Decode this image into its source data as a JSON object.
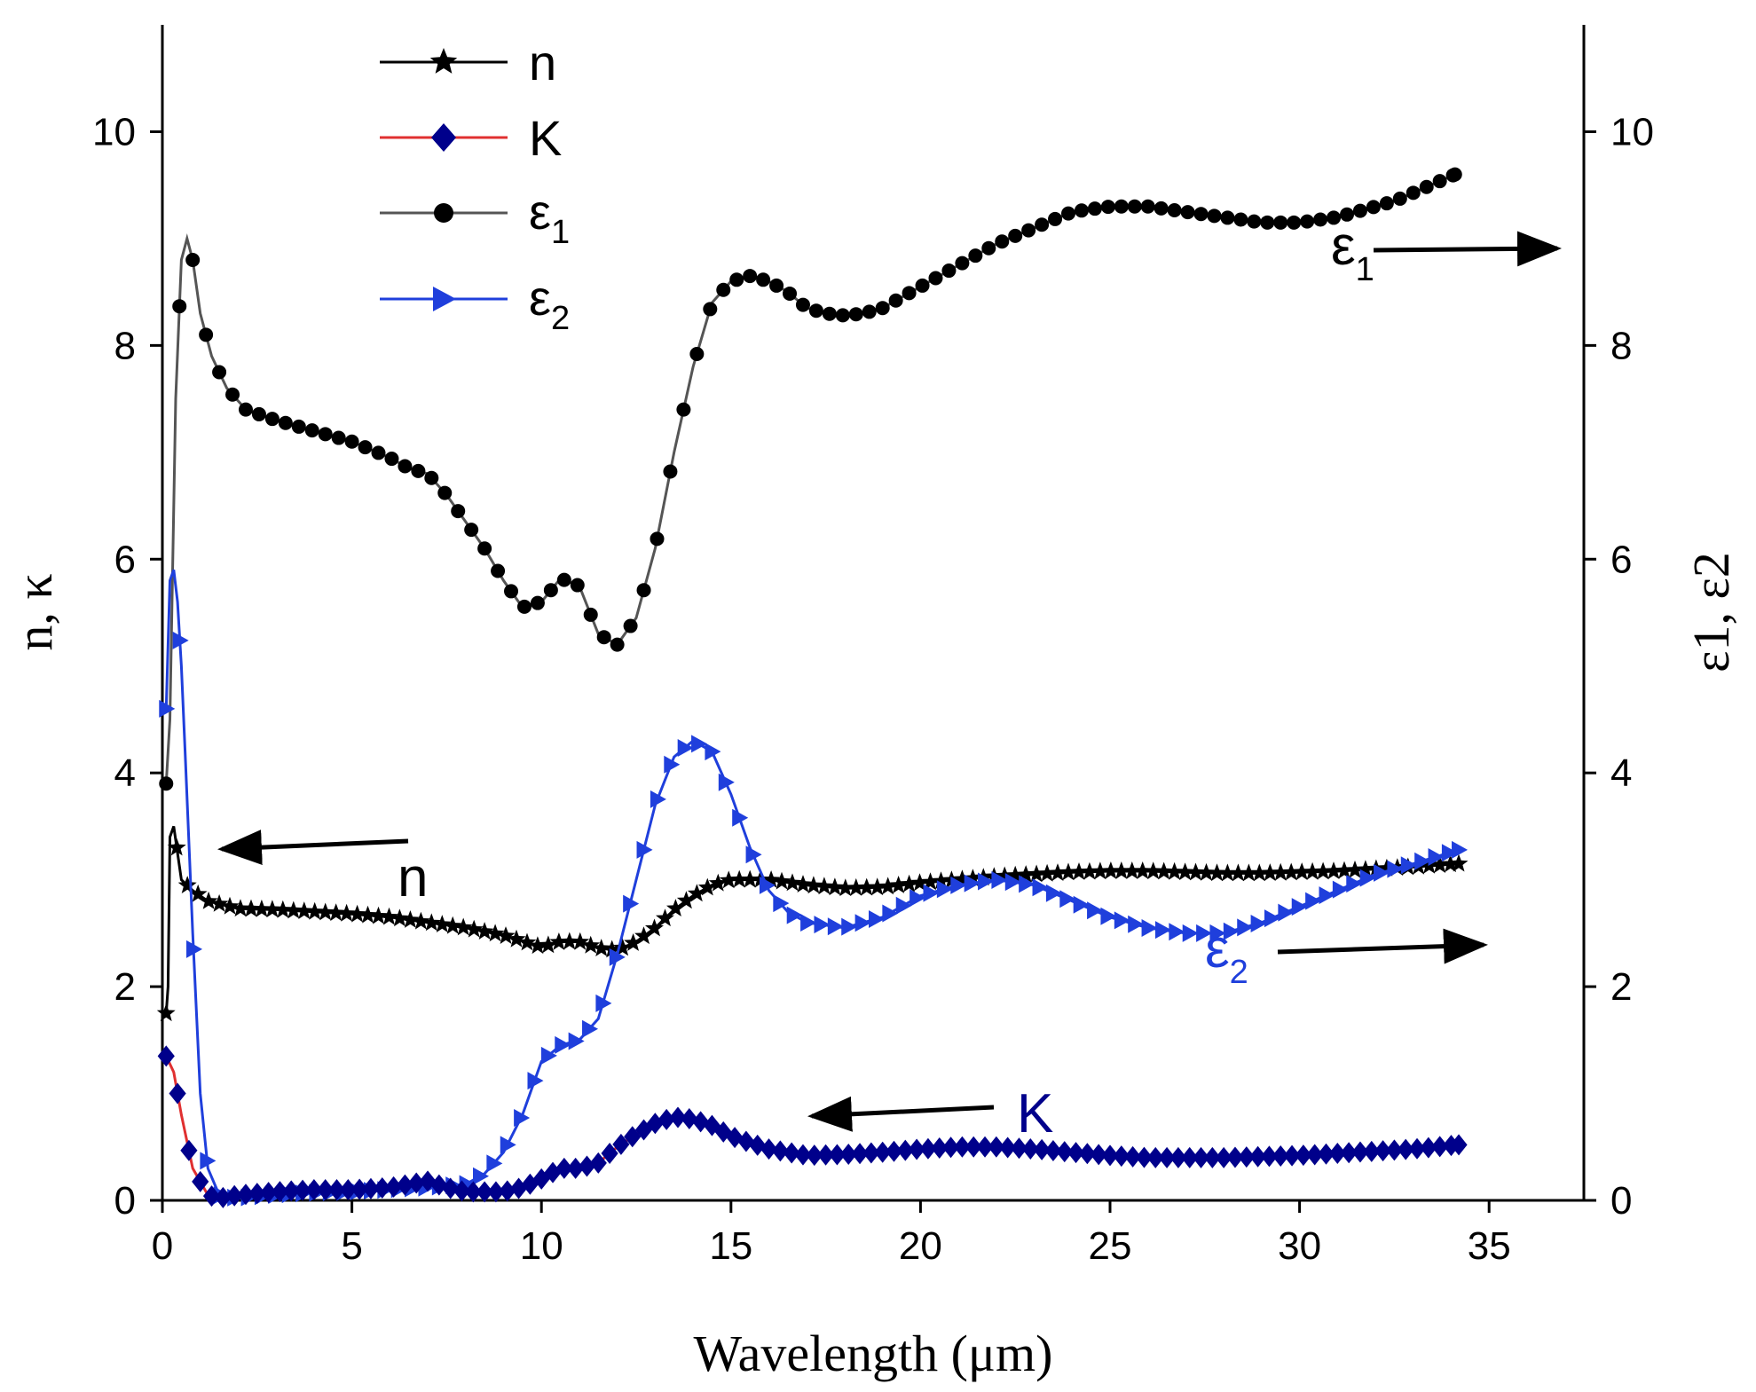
{
  "chart_data": {
    "type": "line",
    "xlabel": "Wavelength (μm)",
    "ylabel_left": "n, κ",
    "ylabel_right": "ε1, ε2",
    "xlim": [
      0,
      37.5
    ],
    "ylim": [
      0,
      11
    ],
    "xticks": [
      0,
      5,
      10,
      15,
      20,
      25,
      30,
      35
    ],
    "yticks": [
      0,
      2,
      4,
      6,
      8,
      10
    ],
    "legend_position": "top-left",
    "colors": {
      "n": "#000000",
      "K": "#00008b",
      "K_line": "#e03030",
      "eps1": "#000000",
      "eps1_line": "#555555",
      "eps2": "#1f3fdc"
    },
    "series": [
      {
        "name": "n",
        "label": "n",
        "axis": "left",
        "marker": "star",
        "x": [
          0.1,
          0.15,
          0.2,
          0.3,
          0.5,
          0.8,
          1.2,
          2,
          3,
          4,
          5,
          6,
          7,
          8,
          9,
          10,
          10.5,
          11,
          11.5,
          12,
          12.5,
          13,
          13.5,
          14,
          14.5,
          15,
          15.5,
          16,
          17,
          18,
          19,
          20,
          21,
          22,
          23,
          24,
          25,
          26,
          27,
          28,
          29,
          30,
          31,
          32,
          33,
          34.2
        ],
        "y": [
          1.75,
          2.0,
          3.4,
          3.5,
          3.0,
          2.9,
          2.8,
          2.73,
          2.72,
          2.7,
          2.68,
          2.65,
          2.6,
          2.55,
          2.48,
          2.37,
          2.42,
          2.42,
          2.36,
          2.34,
          2.42,
          2.55,
          2.72,
          2.85,
          2.95,
          3.0,
          3.0,
          3.0,
          2.95,
          2.92,
          2.93,
          2.97,
          3.0,
          3.03,
          3.05,
          3.07,
          3.08,
          3.08,
          3.07,
          3.06,
          3.06,
          3.07,
          3.08,
          3.1,
          3.12,
          3.15
        ]
      },
      {
        "name": "K",
        "label": "K",
        "axis": "left",
        "marker": "diamond",
        "x": [
          0.1,
          0.3,
          0.5,
          0.8,
          1.2,
          1.5,
          2,
          3,
          4,
          5,
          6,
          7,
          7.5,
          8,
          9,
          9.5,
          10,
          10.5,
          11,
          11.5,
          12,
          12.5,
          13,
          13.5,
          14,
          14.5,
          15,
          16,
          17,
          18,
          19,
          20,
          21,
          22,
          23,
          24,
          25,
          26,
          27,
          28,
          29,
          30,
          31,
          32,
          33,
          34.2
        ],
        "y": [
          1.35,
          1.2,
          0.8,
          0.3,
          0.05,
          0.02,
          0.05,
          0.08,
          0.1,
          0.1,
          0.12,
          0.18,
          0.12,
          0.08,
          0.08,
          0.12,
          0.2,
          0.3,
          0.3,
          0.35,
          0.5,
          0.62,
          0.72,
          0.78,
          0.76,
          0.7,
          0.6,
          0.48,
          0.42,
          0.43,
          0.45,
          0.48,
          0.5,
          0.5,
          0.48,
          0.45,
          0.42,
          0.4,
          0.4,
          0.4,
          0.41,
          0.42,
          0.44,
          0.46,
          0.48,
          0.52
        ]
      },
      {
        "name": "ε1",
        "label": "ε",
        "sub": "1",
        "axis": "right",
        "marker": "circle",
        "x": [
          0.1,
          0.2,
          0.35,
          0.5,
          0.65,
          0.8,
          1,
          1.3,
          1.7,
          2.2,
          3,
          4,
          5,
          6,
          6.5,
          7,
          7.5,
          8,
          8.5,
          9,
          9.5,
          10,
          10.5,
          11,
          11.5,
          12,
          12.5,
          13,
          13.5,
          14,
          14.5,
          15,
          15.5,
          16,
          16.5,
          17,
          17.5,
          18,
          18.5,
          19,
          19.5,
          20,
          21,
          22,
          23,
          24,
          25,
          26,
          27,
          28,
          29,
          30,
          31,
          32.5,
          34.1
        ],
        "y": [
          3.9,
          4.5,
          7.5,
          8.8,
          9.0,
          8.8,
          8.3,
          7.9,
          7.6,
          7.4,
          7.3,
          7.2,
          7.1,
          6.95,
          6.85,
          6.8,
          6.6,
          6.35,
          6.1,
          5.8,
          5.55,
          5.6,
          5.82,
          5.75,
          5.3,
          5.2,
          5.45,
          6.1,
          7.0,
          7.8,
          8.4,
          8.6,
          8.65,
          8.6,
          8.5,
          8.35,
          8.3,
          8.28,
          8.3,
          8.35,
          8.45,
          8.55,
          8.75,
          8.95,
          9.1,
          9.25,
          9.3,
          9.3,
          9.25,
          9.2,
          9.15,
          9.15,
          9.2,
          9.35,
          9.6
        ]
      },
      {
        "name": "ε2",
        "label": "ε",
        "sub": "2",
        "axis": "right",
        "marker": "triangle-right",
        "x": [
          0.1,
          0.2,
          0.3,
          0.4,
          0.5,
          0.6,
          0.8,
          1.0,
          1.2,
          1.5,
          2,
          3,
          4,
          5,
          6,
          7,
          8,
          8.5,
          9,
          9.5,
          10,
          10.5,
          11,
          11.5,
          12,
          12.5,
          13,
          13.5,
          14,
          14.5,
          15,
          15.5,
          16,
          16.5,
          17,
          18,
          19,
          20,
          21,
          22,
          23,
          24,
          25,
          26,
          27,
          28,
          29,
          30,
          31,
          32,
          33,
          34.2
        ],
        "y": [
          4.6,
          5.8,
          5.9,
          5.6,
          5.0,
          4.2,
          2.5,
          1.0,
          0.3,
          0.05,
          0.02,
          0.05,
          0.07,
          0.08,
          0.1,
          0.12,
          0.15,
          0.25,
          0.45,
          0.8,
          1.3,
          1.45,
          1.5,
          1.7,
          2.3,
          3.0,
          3.7,
          4.15,
          4.3,
          4.2,
          3.8,
          3.3,
          2.9,
          2.7,
          2.6,
          2.55,
          2.65,
          2.85,
          2.95,
          3.0,
          2.95,
          2.8,
          2.65,
          2.55,
          2.5,
          2.5,
          2.6,
          2.75,
          2.9,
          3.05,
          3.15,
          3.28
        ]
      }
    ],
    "annotations": [
      {
        "label": "n",
        "text": "n",
        "points_to": "left"
      },
      {
        "label": "K",
        "text": "K",
        "points_to": "left"
      },
      {
        "label": "ε1",
        "text": "ε",
        "sub": "1",
        "points_to": "right"
      },
      {
        "label": "ε2",
        "text": "ε",
        "sub": "2",
        "points_to": "right"
      }
    ]
  }
}
